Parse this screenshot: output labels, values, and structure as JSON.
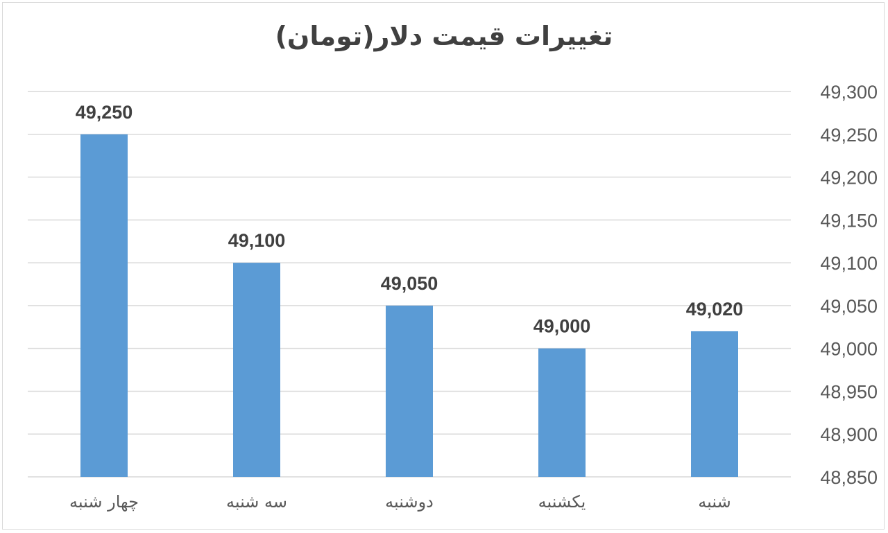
{
  "chart_data": {
    "type": "bar",
    "title": "تغییرات قیمت دلار(تومان)",
    "categories": [
      "چهار شنبه",
      "سه شنبه",
      "دوشنبه",
      "یکشنبه",
      "شنبه"
    ],
    "values": [
      49250,
      49100,
      49050,
      49000,
      49020
    ],
    "data_labels": [
      "49,250",
      "49,100",
      "49,050",
      "49,000",
      "49,020"
    ],
    "ylim": [
      48850,
      49300
    ],
    "y_ticks": [
      48850,
      48900,
      48950,
      49000,
      49050,
      49100,
      49150,
      49200,
      49250,
      49300
    ],
    "y_tick_labels": [
      "48,850",
      "48,900",
      "48,950",
      "49,000",
      "49,050",
      "49,100",
      "49,150",
      "49,200",
      "49,250",
      "49,300"
    ],
    "y_axis_side": "right",
    "grid": true,
    "legend": "none",
    "bar_color": "#5b9bd5"
  }
}
